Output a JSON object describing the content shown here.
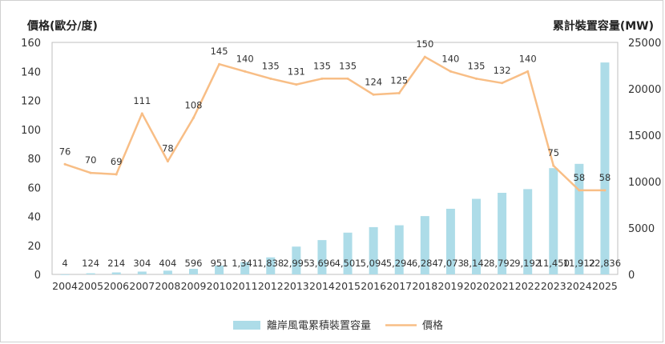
{
  "chart_data": {
    "type": "bar",
    "y_left_label": "價格(歐分/度)",
    "y_right_label": "累計裝置容量(MW)",
    "categories": [
      "2004",
      "2005",
      "2006",
      "2007",
      "2008",
      "2009",
      "2010",
      "2011",
      "2012",
      "2013",
      "2014",
      "2015",
      "2016",
      "2017",
      "2018",
      "2019",
      "2020",
      "2021",
      "2022",
      "2023",
      "2024",
      "2025"
    ],
    "ylim_left": [
      0,
      160
    ],
    "ylim_right": [
      0,
      25000
    ],
    "yticks_left": [
      0,
      20,
      40,
      60,
      80,
      100,
      120,
      140,
      160
    ],
    "yticks_right": [
      0,
      5000,
      10000,
      15000,
      20000,
      25000
    ],
    "series": [
      {
        "name": "離岸風電累積裝置容量",
        "type": "bar",
        "axis": "right",
        "color": "#ADDCE8",
        "values": [
          4,
          124,
          214,
          304,
          404,
          596,
          951,
          1341,
          1838,
          2995,
          3696,
          4501,
          5094,
          5294,
          6284,
          7073,
          8142,
          8792,
          9192,
          11450,
          11912,
          22836
        ],
        "labels": [
          "4",
          "124",
          "214",
          "304",
          "404",
          "596",
          "951",
          "1,341",
          "1,838",
          "2,995",
          "3,696",
          "4,501",
          "5,094",
          "5,294",
          "6,284",
          "7,073",
          "8,142",
          "8,792",
          "9,192",
          "11,450",
          "11,912",
          "22,836"
        ]
      },
      {
        "name": "價格",
        "type": "line",
        "axis": "left",
        "color": "#F8BE86",
        "values": [
          76,
          70,
          69,
          111,
          78,
          108,
          145,
          140,
          135,
          131,
          135,
          135,
          124,
          125,
          150,
          140,
          135,
          132,
          140,
          75,
          58,
          58
        ]
      }
    ],
    "legend": "bottom"
  }
}
